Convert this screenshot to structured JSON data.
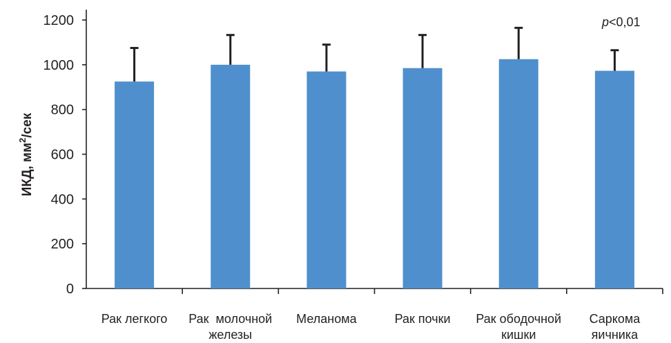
{
  "chart_data": {
    "type": "bar",
    "categories": [
      [
        "Рак легкого"
      ],
      [
        "Рак  молочной",
        "железы"
      ],
      [
        "Меланома"
      ],
      [
        "Рак почки"
      ],
      [
        "Рак ободочной",
        "кишки"
      ],
      [
        "Саркома",
        "яичника"
      ]
    ],
    "values": [
      925,
      1000,
      970,
      985,
      1025,
      973
    ],
    "errors": [
      150,
      133,
      120,
      148,
      140,
      92
    ],
    "ylabel": "ИКД, мм²/сек",
    "ylim": [
      0,
      1200
    ],
    "yticks": [
      "0",
      "200",
      "400",
      "600",
      "800",
      "1000",
      "1200"
    ],
    "annotation": {
      "italic": "p",
      "rest": "<0,01"
    },
    "bar_color": "#4f8fcd",
    "grid": false,
    "legend": "none"
  }
}
